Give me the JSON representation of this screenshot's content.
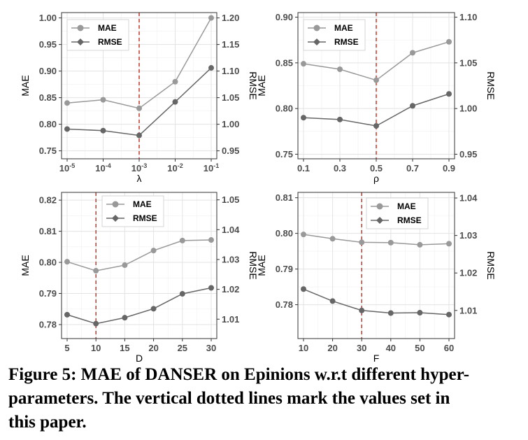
{
  "chart_data": [
    {
      "type": "line",
      "xlabel": "λ",
      "ylabel": "MAE",
      "y2label": "RMSE",
      "categories": [
        "10^-5",
        "10^-4",
        "10^-3",
        "10^-2",
        "10^-1"
      ],
      "x_ticks": [
        {
          "base": "10",
          "exp": "-5"
        },
        {
          "base": "10",
          "exp": "-4"
        },
        {
          "base": "10",
          "exp": "-3"
        },
        {
          "base": "10",
          "exp": "-2"
        },
        {
          "base": "10",
          "exp": "-1"
        }
      ],
      "vline": "10^-3",
      "ylim": [
        0.735,
        1.01
      ],
      "y_ticks": [
        0.75,
        0.8,
        0.85,
        0.9,
        0.95,
        1.0
      ],
      "y_tick_labels": [
        "0.75",
        "0.80",
        "0.85",
        "0.90",
        "0.95",
        "1.00"
      ],
      "y2lim": [
        0.935,
        1.21
      ],
      "y2_ticks": [
        0.95,
        1.0,
        1.05,
        1.1,
        1.15,
        1.2
      ],
      "y2_tick_labels": [
        "0.95",
        "1.00",
        "1.05",
        "1.10",
        "1.15",
        "1.20"
      ],
      "legend_position": "top-left",
      "grid": true,
      "series": [
        {
          "name": "MAE",
          "axis": "left",
          "color": "#999999",
          "marker": "circle",
          "values": [
            0.84,
            0.846,
            0.83,
            0.88,
            1.0
          ]
        },
        {
          "name": "RMSE",
          "axis": "right",
          "color": "#666666",
          "marker": "diamond",
          "values": [
            0.991,
            0.988,
            0.979,
            1.042,
            1.106
          ]
        }
      ]
    },
    {
      "type": "line",
      "xlabel": "ρ",
      "ylabel": "MAE",
      "y2label": "RMSE",
      "categories": [
        "0.1",
        "0.3",
        "0.5",
        "0.7",
        "0.9"
      ],
      "vline": "0.5",
      "ylim": [
        0.745,
        0.905
      ],
      "y_ticks": [
        0.75,
        0.8,
        0.85,
        0.9
      ],
      "y_tick_labels": [
        "0.75",
        "0.80",
        "0.85",
        "0.90"
      ],
      "y2lim": [
        0.945,
        1.105
      ],
      "y2_ticks": [
        0.95,
        1.0,
        1.05,
        1.1
      ],
      "y2_tick_labels": [
        "0.95",
        "1.00",
        "1.05",
        "1.10"
      ],
      "legend_position": "top-left",
      "grid": true,
      "series": [
        {
          "name": "MAE",
          "axis": "left",
          "color": "#999999",
          "marker": "circle",
          "values": [
            0.849,
            0.843,
            0.831,
            0.861,
            0.873
          ]
        },
        {
          "name": "RMSE",
          "axis": "right",
          "color": "#666666",
          "marker": "diamond",
          "values": [
            0.99,
            0.988,
            0.981,
            1.003,
            1.016
          ]
        }
      ]
    },
    {
      "type": "line",
      "xlabel": "D",
      "ylabel": "MAE",
      "y2label": "RMSE",
      "categories": [
        "5",
        "10",
        "15",
        "20",
        "25",
        "30"
      ],
      "vline": "10",
      "ylim": [
        0.7755,
        0.8225
      ],
      "y_ticks": [
        0.78,
        0.79,
        0.8,
        0.81,
        0.82
      ],
      "y_tick_labels": [
        "0.78",
        "0.79",
        "0.80",
        "0.81",
        "0.82"
      ],
      "y2lim": [
        1.0035,
        1.0525
      ],
      "y2_ticks": [
        1.01,
        1.02,
        1.03,
        1.04,
        1.05
      ],
      "y2_tick_labels": [
        "1.01",
        "1.02",
        "1.03",
        "1.04",
        "1.05"
      ],
      "legend_position": "top",
      "grid": true,
      "series": [
        {
          "name": "MAE",
          "axis": "left",
          "color": "#999999",
          "marker": "circle",
          "values": [
            0.8002,
            0.7973,
            0.7991,
            0.8038,
            0.807,
            0.8072
          ]
        },
        {
          "name": "RMSE",
          "axis": "right",
          "color": "#666666",
          "marker": "diamond",
          "values": [
            1.0115,
            1.0085,
            1.0105,
            1.0135,
            1.0185,
            1.0205
          ]
        }
      ]
    },
    {
      "type": "line",
      "xlabel": "F",
      "ylabel": "MAE",
      "y2label": "RMSE",
      "categories": [
        "10",
        "20",
        "30",
        "40",
        "50",
        "60"
      ],
      "vline": "30",
      "ylim": [
        0.7705,
        0.8115
      ],
      "y_ticks": [
        0.78,
        0.79,
        0.8,
        0.81
      ],
      "y_tick_labels": [
        "0.78",
        "0.79",
        "0.80",
        "0.81"
      ],
      "y2lim": [
        1.0025,
        1.0415
      ],
      "y2_ticks": [
        1.01,
        1.02,
        1.03,
        1.04
      ],
      "y2_tick_labels": [
        "1.01",
        "1.02",
        "1.03",
        "1.04"
      ],
      "legend_position": "top-right",
      "grid": true,
      "series": [
        {
          "name": "MAE",
          "axis": "left",
          "color": "#999999",
          "marker": "circle",
          "values": [
            0.7997,
            0.7985,
            0.7975,
            0.7974,
            0.7968,
            0.7971
          ]
        },
        {
          "name": "RMSE",
          "axis": "right",
          "color": "#666666",
          "marker": "diamond",
          "values": [
            1.0157,
            1.0125,
            1.01,
            1.0093,
            1.0094,
            1.0089
          ]
        }
      ]
    }
  ],
  "caption": {
    "line1": "Figure 5: MAE of DANSER on Epinions w.r.t different hyper-",
    "line2": "parameters. The vertical dotted lines mark the values set in",
    "line3": "this paper."
  }
}
